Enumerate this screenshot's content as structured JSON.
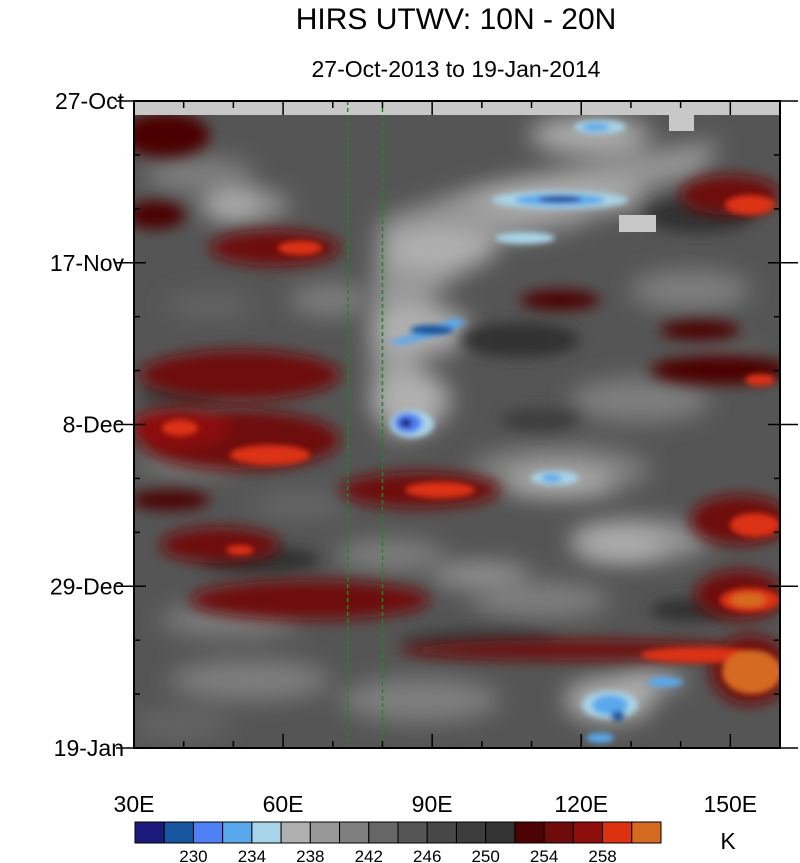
{
  "chart_data": {
    "type": "heatmap",
    "title": "HIRS UTWV: 10N - 20N",
    "subtitle": "27-Oct-2013 to 19-Jan-2014",
    "x_axis": {
      "range": [
        30,
        160
      ],
      "ticks": [
        30,
        60,
        90,
        120,
        150
      ],
      "tick_labels": [
        "30E",
        "60E",
        "90E",
        "120E",
        "150E"
      ]
    },
    "y_axis": {
      "range_days": [
        0,
        84
      ],
      "ticks_days": [
        0,
        21,
        42,
        63,
        84
      ],
      "tick_labels": [
        "27-Oct",
        "17-Nov",
        "8-Dec",
        "29-Dec",
        "19-Jan"
      ],
      "direction": "time increases downward"
    },
    "reference_lines": [
      {
        "lon": 73,
        "style": "dashed",
        "color": "#1a8a1a"
      },
      {
        "lon": 80,
        "style": "dashed",
        "color": "#1a8a1a"
      }
    ],
    "colorbar": {
      "unit": "K",
      "levels": [
        228,
        230,
        232,
        234,
        236,
        238,
        240,
        242,
        244,
        246,
        248,
        250,
        252,
        254,
        256,
        258
      ],
      "labels": [
        "230",
        "234",
        "238",
        "242",
        "246",
        "250",
        "254",
        "258"
      ],
      "colors": [
        "#1b1b7e",
        "#17559e",
        "#4f7ff5",
        "#5aa8ec",
        "#a7d4e6",
        "#b0b0b0",
        "#989898",
        "#7f7f7f",
        "#666666",
        "#555555",
        "#474747",
        "#3d3d3d",
        "#333333",
        "#4b0303",
        "#6e0b0b",
        "#8d0c0c",
        "#dc3212",
        "#d56a22"
      ]
    },
    "features": [
      {
        "name": "cold streak",
        "lon_range": [
          112,
          127
        ],
        "date": "early Nov",
        "min_K": 230
      },
      {
        "name": "cold streak",
        "lon_range": [
          82,
          94
        ],
        "date": "late Nov",
        "min_K": 232
      },
      {
        "name": "cold spot",
        "lon": 84,
        "date": "8-Dec",
        "min_K": 230
      },
      {
        "name": "cold spot",
        "lon": 123,
        "date": "mid Jan",
        "min_K": 232
      },
      {
        "name": "warm patch",
        "lon_range": [
          140,
          160
        ],
        "date": "early Jan",
        "max_K": 260
      },
      {
        "name": "missing data band",
        "lon_range": [
          30,
          160
        ],
        "date": "27-Oct"
      }
    ]
  }
}
